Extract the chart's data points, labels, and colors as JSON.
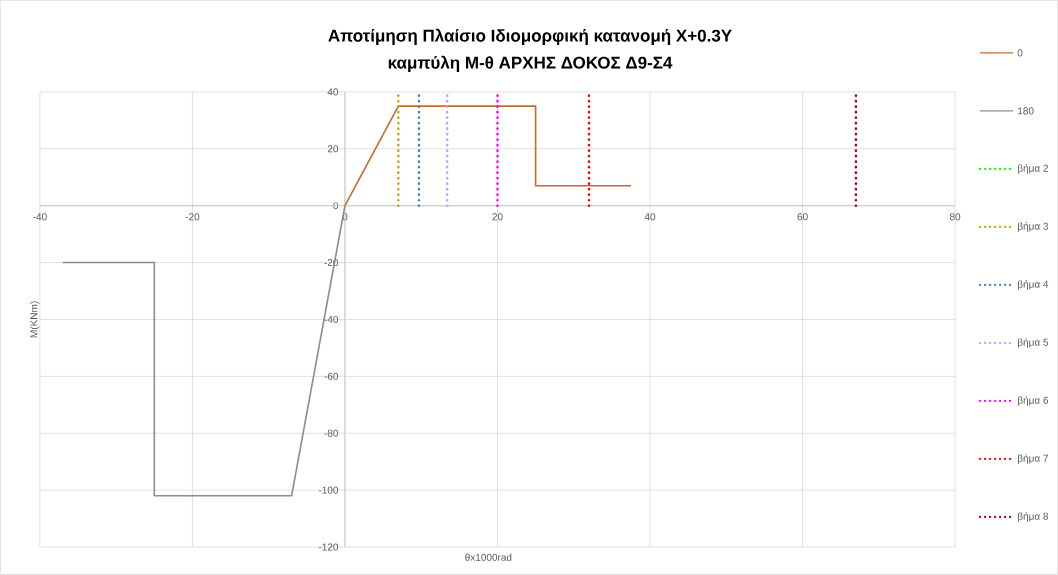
{
  "chart_data": {
    "type": "line",
    "title": "Αποτίμηση Πλαίσιο Ιδιομορφική κατανομή X+0.3Y",
    "subtitle": "καμπύλη Μ-θ ΑΡΧΗΣ ΔΟΚΟΣ Δ9-Σ4",
    "xlabel": "θx1000rad",
    "ylabel": "M(KNm)",
    "xlim": [
      -40,
      80
    ],
    "ylim": [
      -120,
      40
    ],
    "xticks": [
      -40,
      -20,
      0,
      20,
      40,
      60,
      80
    ],
    "yticks": [
      -120,
      -100,
      -80,
      -60,
      -40,
      -20,
      0,
      20,
      40
    ],
    "grid": true,
    "legend": "right",
    "series": [
      {
        "name": "0",
        "color": "#c66b30",
        "line_style": "solid",
        "x": [
          0,
          7,
          25,
          25,
          37.5
        ],
        "values": [
          0,
          35,
          35,
          7,
          7
        ]
      },
      {
        "name": "180",
        "color": "#8c8c8c",
        "line_style": "solid",
        "x": [
          0,
          -7,
          -25,
          -25,
          -37
        ],
        "values": [
          0,
          -102,
          -102,
          -20,
          -20
        ]
      },
      {
        "name": "βήμα 2",
        "color": "#00ff00",
        "line_style": "dotted",
        "x": [
          null,
          null
        ],
        "values": [
          null,
          null
        ]
      },
      {
        "name": "βήμα 3",
        "color": "#c9a300",
        "line_style": "dotted",
        "x": [
          7,
          7
        ],
        "values": [
          0,
          40
        ]
      },
      {
        "name": "βήμα 4",
        "color": "#4a7fb5",
        "line_style": "dotted",
        "x": [
          9.7,
          9.7
        ],
        "values": [
          0,
          40
        ]
      },
      {
        "name": "βήμα 5",
        "color": "#cc99ff",
        "line_style": "dotted",
        "x": [
          13.4,
          13.4
        ],
        "values": [
          0,
          40
        ]
      },
      {
        "name": "βήμα 6",
        "color": "#ff00ff",
        "line_style": "dotted",
        "x": [
          20,
          20
        ],
        "values": [
          0,
          40
        ]
      },
      {
        "name": "βήμα 7",
        "color": "#ff0000",
        "line_style": "dotted",
        "x": [
          32,
          32
        ],
        "values": [
          0,
          40
        ]
      },
      {
        "name": "βήμα 8",
        "color": "#a50021",
        "line_style": "dotted",
        "x": [
          67,
          67
        ],
        "values": [
          0,
          40
        ]
      }
    ]
  }
}
